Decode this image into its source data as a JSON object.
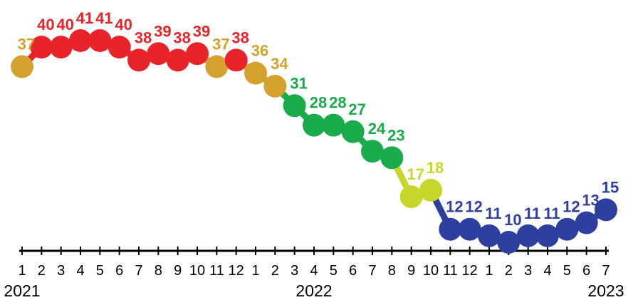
{
  "colors": {
    "high": "#e8232a",
    "upper_mid": "#d4a22c",
    "mid": "#1aab4a",
    "low_mid": "#c8d62b",
    "low": "#2e3fa0",
    "axis": "#000000"
  },
  "chart_data": {
    "type": "line",
    "title": "",
    "xlabel": "",
    "ylabel": "",
    "ylim": [
      8,
      44
    ],
    "grid": false,
    "legend": "none",
    "x_tick_labels": [
      "1",
      "2",
      "3",
      "4",
      "5",
      "6",
      "7",
      "8",
      "9",
      "10",
      "11",
      "12",
      "1",
      "2",
      "3",
      "4",
      "5",
      "6",
      "7",
      "8",
      "9",
      "10",
      "11",
      "12",
      "1",
      "2",
      "3",
      "4",
      "5",
      "6",
      "7"
    ],
    "year_labels": [
      {
        "label": "2021",
        "at_index": 0
      },
      {
        "label": "2022",
        "at_index": 15
      },
      {
        "label": "2023",
        "at_index": 30
      }
    ],
    "values": [
      37,
      40,
      40,
      41,
      41,
      40,
      38,
      39,
      38,
      39,
      37,
      38,
      36,
      34,
      31,
      28,
      28,
      27,
      24,
      23,
      17,
      18,
      12,
      12,
      11,
      10,
      11,
      11,
      12,
      13,
      15
    ],
    "point_color_keys": [
      "upper_mid",
      "high",
      "high",
      "high",
      "high",
      "high",
      "high",
      "high",
      "high",
      "high",
      "upper_mid",
      "high",
      "upper_mid",
      "upper_mid",
      "mid",
      "mid",
      "mid",
      "mid",
      "mid",
      "mid",
      "low_mid",
      "low_mid",
      "low",
      "low",
      "low",
      "low",
      "low",
      "low",
      "low",
      "low",
      "low"
    ]
  }
}
